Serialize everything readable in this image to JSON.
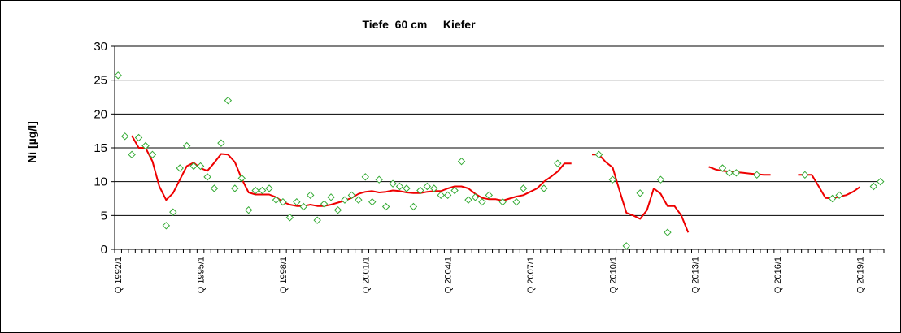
{
  "chart_data": {
    "type": "line",
    "title": "Tiefe  60 cm     Kiefer",
    "ylabel": "Ni [µg/l]",
    "xlabel": "",
    "ylim": [
      0,
      30
    ],
    "yticks": [
      0,
      5,
      10,
      15,
      20,
      25,
      30
    ],
    "grid": true,
    "legend": "none",
    "x_start": "1992/1",
    "x_end": "2019/4",
    "x_tick_labels": [
      {
        "label": "Q 1992/1",
        "x": "1992/1"
      },
      {
        "label": "Q 1995/1",
        "x": "1995/1"
      },
      {
        "label": "Q 1998/1",
        "x": "1998/1"
      },
      {
        "label": "Q 2001/1",
        "x": "2001/1"
      },
      {
        "label": "Q 2004/1",
        "x": "2004/1"
      },
      {
        "label": "Q 2007/1",
        "x": "2007/1"
      },
      {
        "label": "Q 2010/1",
        "x": "2010/1"
      },
      {
        "label": "Q 2013/1",
        "x": "2013/1"
      },
      {
        "label": "Q 2016/1",
        "x": "2016/1"
      },
      {
        "label": "Q 2019/1",
        "x": "2019/1"
      }
    ],
    "colors": {
      "measurements": "#33aa33",
      "trend": "#ee0000",
      "grid": "#000000"
    },
    "series": [
      {
        "style": "markers-diamond",
        "points": [
          {
            "x": "1992/1",
            "y": 25.7
          },
          {
            "x": "1992/2",
            "y": 16.7
          },
          {
            "x": "1992/3",
            "y": 14.0
          },
          {
            "x": "1992/4",
            "y": 16.5
          },
          {
            "x": "1993/1",
            "y": 15.3
          },
          {
            "x": "1993/2",
            "y": 14.0
          },
          {
            "x": "1993/4",
            "y": 3.5
          },
          {
            "x": "1994/1",
            "y": 5.5
          },
          {
            "x": "1994/2",
            "y": 12.0
          },
          {
            "x": "1994/3",
            "y": 15.3
          },
          {
            "x": "1994/4",
            "y": 12.3
          },
          {
            "x": "1995/1",
            "y": 12.3
          },
          {
            "x": "1995/2",
            "y": 10.7
          },
          {
            "x": "1995/3",
            "y": 9.0
          },
          {
            "x": "1995/4",
            "y": 15.7
          },
          {
            "x": "1996/1",
            "y": 22.0
          },
          {
            "x": "1996/2",
            "y": 9.0
          },
          {
            "x": "1996/3",
            "y": 10.5
          },
          {
            "x": "1996/4",
            "y": 5.8
          },
          {
            "x": "1997/1",
            "y": 8.7
          },
          {
            "x": "1997/2",
            "y": 8.7
          },
          {
            "x": "1997/3",
            "y": 9.0
          },
          {
            "x": "1997/4",
            "y": 7.3
          },
          {
            "x": "1998/1",
            "y": 7.0
          },
          {
            "x": "1998/2",
            "y": 4.7
          },
          {
            "x": "1998/3",
            "y": 7.0
          },
          {
            "x": "1998/4",
            "y": 6.3
          },
          {
            "x": "1999/1",
            "y": 8.0
          },
          {
            "x": "1999/2",
            "y": 4.3
          },
          {
            "x": "1999/3",
            "y": 6.7
          },
          {
            "x": "1999/4",
            "y": 7.7
          },
          {
            "x": "2000/1",
            "y": 5.8
          },
          {
            "x": "2000/2",
            "y": 7.3
          },
          {
            "x": "2000/3",
            "y": 8.0
          },
          {
            "x": "2000/4",
            "y": 7.3
          },
          {
            "x": "2001/1",
            "y": 10.7
          },
          {
            "x": "2001/2",
            "y": 7.0
          },
          {
            "x": "2001/3",
            "y": 10.3
          },
          {
            "x": "2001/4",
            "y": 6.3
          },
          {
            "x": "2002/1",
            "y": 9.7
          },
          {
            "x": "2002/2",
            "y": 9.3
          },
          {
            "x": "2002/3",
            "y": 9.0
          },
          {
            "x": "2002/4",
            "y": 6.3
          },
          {
            "x": "2003/1",
            "y": 8.7
          },
          {
            "x": "2003/2",
            "y": 9.3
          },
          {
            "x": "2003/3",
            "y": 9.0
          },
          {
            "x": "2003/4",
            "y": 8.0
          },
          {
            "x": "2004/1",
            "y": 8.0
          },
          {
            "x": "2004/2",
            "y": 8.7
          },
          {
            "x": "2004/3",
            "y": 13.0
          },
          {
            "x": "2004/4",
            "y": 7.3
          },
          {
            "x": "2005/1",
            "y": 7.7
          },
          {
            "x": "2005/2",
            "y": 7.0
          },
          {
            "x": "2005/3",
            "y": 8.0
          },
          {
            "x": "2006/1",
            "y": 7.0
          },
          {
            "x": "2006/3",
            "y": 7.0
          },
          {
            "x": "2006/4",
            "y": 9.0
          },
          {
            "x": "2007/3",
            "y": 9.0
          },
          {
            "x": "2008/1",
            "y": 12.7
          },
          {
            "x": "2009/3",
            "y": 14.0
          },
          {
            "x": "2010/1",
            "y": 10.3
          },
          {
            "x": "2010/3",
            "y": 0.5
          },
          {
            "x": "2011/1",
            "y": 8.3
          },
          {
            "x": "2011/4",
            "y": 10.3
          },
          {
            "x": "2012/1",
            "y": 2.5
          },
          {
            "x": "2014/1",
            "y": 12.0
          },
          {
            "x": "2014/2",
            "y": 11.3
          },
          {
            "x": "2014/3",
            "y": 11.3
          },
          {
            "x": "2015/2",
            "y": 11.0
          },
          {
            "x": "2017/1",
            "y": 11.0
          },
          {
            "x": "2018/1",
            "y": 7.5
          },
          {
            "x": "2018/2",
            "y": 8.0
          },
          {
            "x": "2019/3",
            "y": 9.3
          },
          {
            "x": "2019/4",
            "y": 10.0
          }
        ]
      },
      {
        "style": "line",
        "segments": [
          [
            {
              "x": "1992/3",
              "y": 16.8
            },
            {
              "x": "1992/4",
              "y": 15.0
            },
            {
              "x": "1993/1",
              "y": 15.0
            },
            {
              "x": "1993/2",
              "y": 13.0
            },
            {
              "x": "1993/3",
              "y": 9.3
            },
            {
              "x": "1993/4",
              "y": 7.3
            },
            {
              "x": "1994/1",
              "y": 8.3
            },
            {
              "x": "1994/2",
              "y": 10.3
            },
            {
              "x": "1994/3",
              "y": 12.3
            },
            {
              "x": "1994/4",
              "y": 12.8
            },
            {
              "x": "1995/1",
              "y": 12.0
            },
            {
              "x": "1995/2",
              "y": 11.6
            },
            {
              "x": "1995/3",
              "y": 12.8
            },
            {
              "x": "1995/4",
              "y": 14.1
            },
            {
              "x": "1996/1",
              "y": 14.0
            },
            {
              "x": "1996/2",
              "y": 12.9
            },
            {
              "x": "1996/3",
              "y": 10.4
            },
            {
              "x": "1996/4",
              "y": 8.4
            },
            {
              "x": "1997/1",
              "y": 8.1
            },
            {
              "x": "1997/2",
              "y": 8.1
            },
            {
              "x": "1997/3",
              "y": 8.1
            },
            {
              "x": "1997/4",
              "y": 7.7
            },
            {
              "x": "1998/1",
              "y": 7.0
            },
            {
              "x": "1998/2",
              "y": 6.6
            },
            {
              "x": "1998/3",
              "y": 6.4
            },
            {
              "x": "1998/4",
              "y": 6.4
            },
            {
              "x": "1999/1",
              "y": 6.6
            },
            {
              "x": "1999/2",
              "y": 6.4
            },
            {
              "x": "1999/3",
              "y": 6.4
            },
            {
              "x": "1999/4",
              "y": 6.6
            },
            {
              "x": "2000/1",
              "y": 6.9
            },
            {
              "x": "2000/2",
              "y": 7.2
            },
            {
              "x": "2000/3",
              "y": 7.6
            },
            {
              "x": "2000/4",
              "y": 8.2
            },
            {
              "x": "2001/1",
              "y": 8.5
            },
            {
              "x": "2001/2",
              "y": 8.6
            },
            {
              "x": "2001/3",
              "y": 8.4
            },
            {
              "x": "2001/4",
              "y": 8.5
            },
            {
              "x": "2002/1",
              "y": 8.7
            },
            {
              "x": "2002/2",
              "y": 8.6
            },
            {
              "x": "2002/3",
              "y": 8.4
            },
            {
              "x": "2002/4",
              "y": 8.3
            },
            {
              "x": "2003/1",
              "y": 8.3
            },
            {
              "x": "2003/2",
              "y": 8.5
            },
            {
              "x": "2003/3",
              "y": 8.6
            },
            {
              "x": "2003/4",
              "y": 8.6
            },
            {
              "x": "2004/1",
              "y": 9.0
            },
            {
              "x": "2004/2",
              "y": 9.3
            },
            {
              "x": "2004/3",
              "y": 9.3
            },
            {
              "x": "2004/4",
              "y": 9.0
            },
            {
              "x": "2005/1",
              "y": 8.2
            },
            {
              "x": "2005/2",
              "y": 7.6
            },
            {
              "x": "2005/3",
              "y": 7.4
            },
            {
              "x": "2005/4",
              "y": 7.4
            },
            {
              "x": "2006/1",
              "y": 7.2
            },
            {
              "x": "2006/2",
              "y": 7.5
            },
            {
              "x": "2006/3",
              "y": 7.8
            },
            {
              "x": "2006/4",
              "y": 8.0
            },
            {
              "x": "2007/1",
              "y": 8.5
            },
            {
              "x": "2007/2",
              "y": 9.0
            },
            {
              "x": "2007/3",
              "y": 10.0
            },
            {
              "x": "2007/4",
              "y": 10.7
            },
            {
              "x": "2008/1",
              "y": 11.5
            },
            {
              "x": "2008/2",
              "y": 12.7
            },
            {
              "x": "2008/3",
              "y": 12.7
            }
          ],
          [
            {
              "x": "2009/2",
              "y": 14.0
            },
            {
              "x": "2009/3",
              "y": 14.0
            },
            {
              "x": "2009/4",
              "y": 12.9
            },
            {
              "x": "2010/1",
              "y": 12.1
            },
            {
              "x": "2010/2",
              "y": 8.7
            },
            {
              "x": "2010/3",
              "y": 5.4
            },
            {
              "x": "2010/4",
              "y": 5.0
            },
            {
              "x": "2011/1",
              "y": 4.5
            },
            {
              "x": "2011/2",
              "y": 5.8
            },
            {
              "x": "2011/3",
              "y": 9.0
            },
            {
              "x": "2011/4",
              "y": 8.2
            },
            {
              "x": "2012/1",
              "y": 6.4
            },
            {
              "x": "2012/2",
              "y": 6.4
            },
            {
              "x": "2012/3",
              "y": 5.0
            },
            {
              "x": "2012/4",
              "y": 2.5
            }
          ],
          [
            {
              "x": "2013/3",
              "y": 12.2
            },
            {
              "x": "2013/4",
              "y": 11.8
            },
            {
              "x": "2014/1",
              "y": 11.6
            },
            {
              "x": "2014/2",
              "y": 11.5
            },
            {
              "x": "2014/3",
              "y": 11.4
            },
            {
              "x": "2014/4",
              "y": 11.3
            },
            {
              "x": "2015/1",
              "y": 11.2
            },
            {
              "x": "2015/2",
              "y": 11.1
            },
            {
              "x": "2015/3",
              "y": 11.0
            },
            {
              "x": "2015/4",
              "y": 11.0
            }
          ],
          [
            {
              "x": "2016/4",
              "y": 11.0
            },
            {
              "x": "2017/1",
              "y": 11.0
            },
            {
              "x": "2017/2",
              "y": 11.0
            },
            {
              "x": "2017/3",
              "y": 9.3
            },
            {
              "x": "2017/4",
              "y": 7.6
            },
            {
              "x": "2018/1",
              "y": 7.5
            },
            {
              "x": "2018/2",
              "y": 7.8
            },
            {
              "x": "2018/3",
              "y": 8.0
            },
            {
              "x": "2018/4",
              "y": 8.5
            },
            {
              "x": "2019/1",
              "y": 9.2
            }
          ]
        ]
      }
    ]
  }
}
